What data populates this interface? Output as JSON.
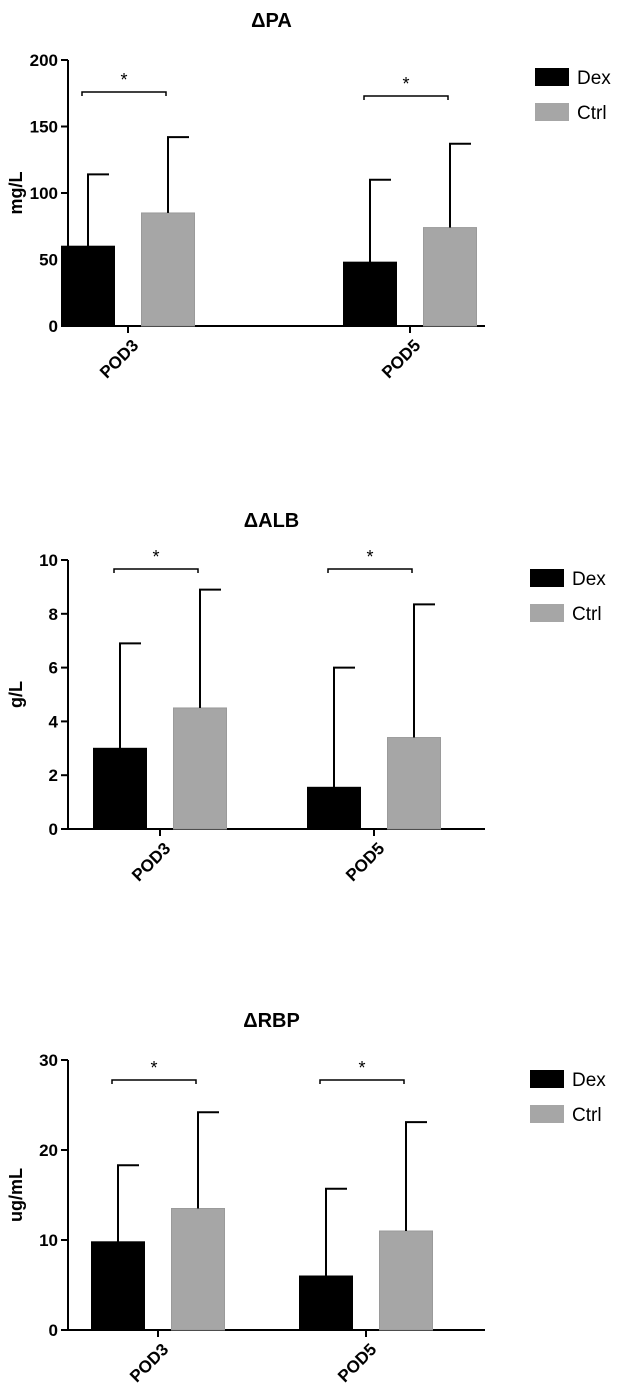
{
  "chart_data": [
    {
      "type": "bar",
      "title": "ΔPA",
      "ylabel": "mg/L",
      "categories": [
        "POD3",
        "POD5"
      ],
      "ylim": [
        0,
        200
      ],
      "yticks": [
        0,
        50,
        100,
        150,
        200
      ],
      "series": [
        {
          "name": "Dex",
          "color": "#000000",
          "values": [
            60,
            48
          ],
          "error": [
            54,
            62
          ]
        },
        {
          "name": "Ctrl",
          "color": "#a6a6a6",
          "values": [
            85,
            74
          ],
          "error": [
            57,
            63
          ]
        }
      ],
      "significance": [
        "*",
        "*"
      ],
      "legend": "right"
    },
    {
      "type": "bar",
      "title": "ΔALB",
      "ylabel": "g/L",
      "categories": [
        "POD3",
        "POD5"
      ],
      "ylim": [
        0,
        10
      ],
      "yticks": [
        0,
        2,
        4,
        6,
        8,
        10
      ],
      "series": [
        {
          "name": "Dex",
          "color": "#000000",
          "values": [
            3.0,
            1.55
          ],
          "error": [
            3.9,
            4.45
          ]
        },
        {
          "name": "Ctrl",
          "color": "#a6a6a6",
          "values": [
            4.5,
            3.4
          ],
          "error": [
            4.4,
            4.95
          ]
        }
      ],
      "significance": [
        "*",
        "*"
      ],
      "legend": "right"
    },
    {
      "type": "bar",
      "title": "ΔRBP",
      "ylabel": "ug/mL",
      "categories": [
        "POD3",
        "POD5"
      ],
      "ylim": [
        0,
        30
      ],
      "yticks": [
        0,
        10,
        20,
        30
      ],
      "series": [
        {
          "name": "Dex",
          "color": "#000000",
          "values": [
            9.8,
            6.0
          ],
          "error": [
            8.5,
            9.7
          ]
        },
        {
          "name": "Ctrl",
          "color": "#a6a6a6",
          "values": [
            13.5,
            11.0
          ],
          "error": [
            10.7,
            12.1
          ]
        }
      ],
      "significance": [
        "*",
        "*"
      ],
      "legend": "right"
    }
  ]
}
